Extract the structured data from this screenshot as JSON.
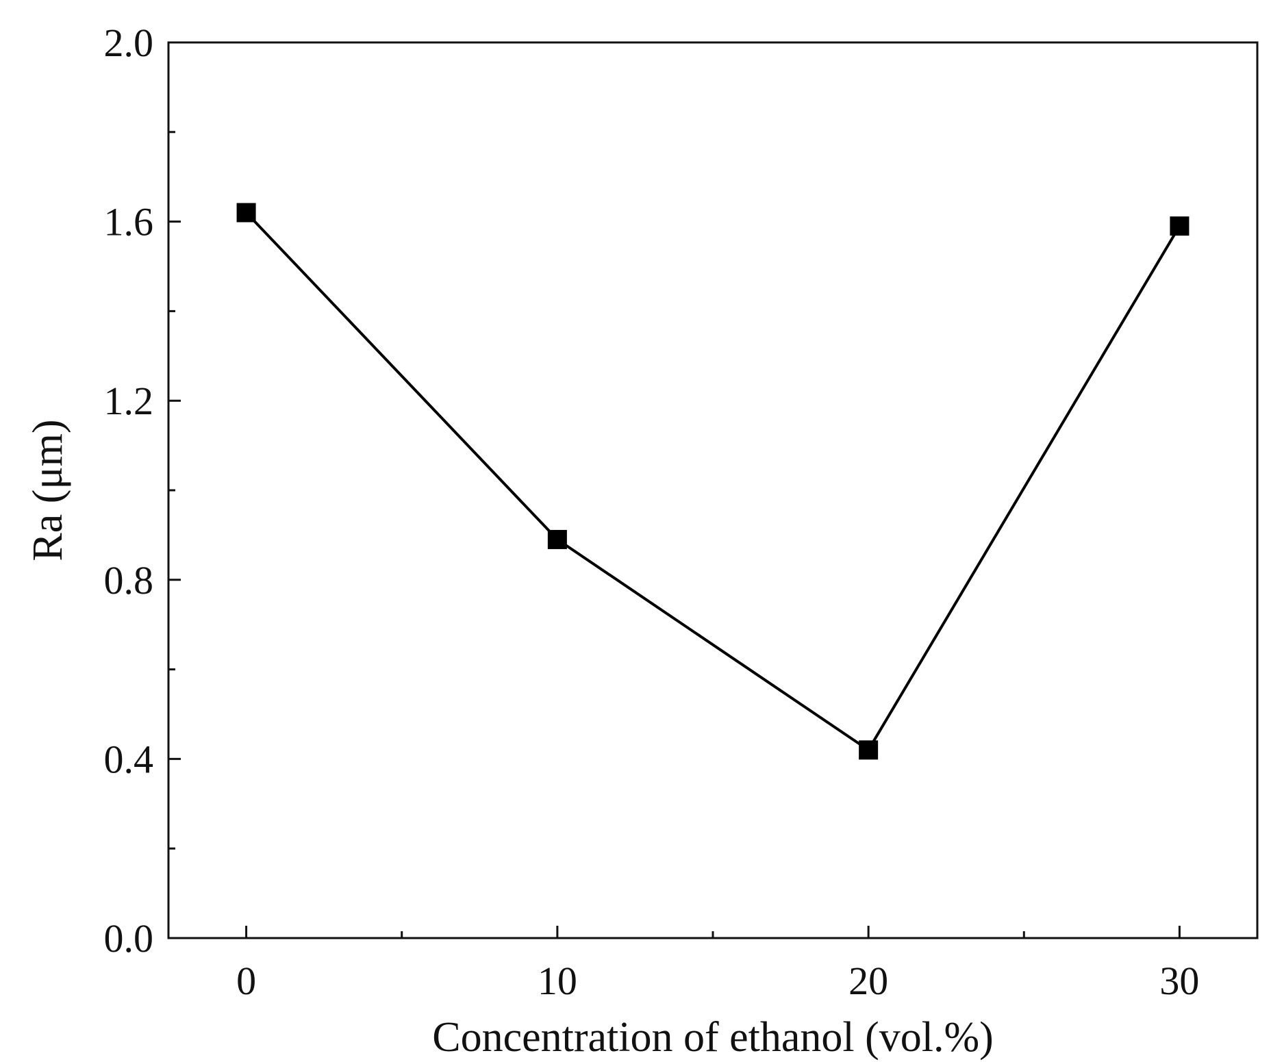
{
  "chart_data": {
    "type": "line",
    "title": "",
    "xlabel": "Concentration of ethanol (vol.%)",
    "ylabel": "Ra (μm)",
    "xlim": [
      -2.5,
      32.5
    ],
    "ylim": [
      0.0,
      2.0
    ],
    "x_ticks": [
      0,
      10,
      20,
      30
    ],
    "x_tick_labels": [
      "0",
      "10",
      "20",
      "30"
    ],
    "x_minor_ticks": [
      5,
      15,
      25
    ],
    "y_ticks": [
      0.0,
      0.4,
      0.8,
      1.2,
      1.6,
      2.0
    ],
    "y_tick_labels": [
      "0.0",
      "0.4",
      "0.8",
      "1.2",
      "1.6",
      "2.0"
    ],
    "y_minor_ticks": [
      0.2,
      0.6,
      1.0,
      1.4,
      1.8
    ],
    "grid": false,
    "legend": "none",
    "marker": "square",
    "line_color": "#000000",
    "marker_color": "#000000",
    "series": [
      {
        "x": [
          0,
          10,
          20,
          30
        ],
        "values": [
          1.62,
          0.89,
          0.42,
          1.59
        ]
      }
    ]
  }
}
